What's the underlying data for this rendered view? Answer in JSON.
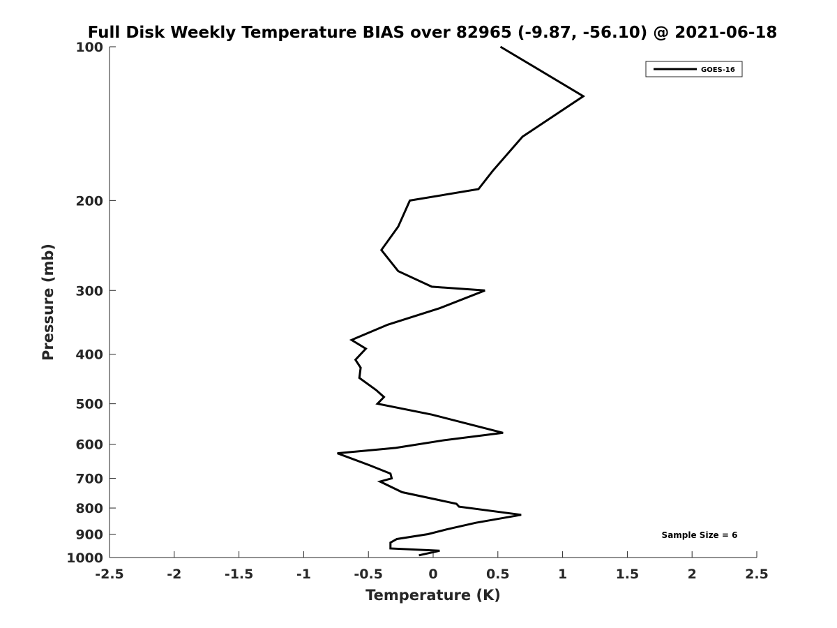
{
  "chart_data": {
    "type": "line",
    "title": "Full Disk Weekly Temperature BIAS over 82965 (-9.87, -56.10) @ 2021-06-18",
    "xlabel": "Temperature (K)",
    "ylabel": "Pressure (mb)",
    "xlim": [
      -2.5,
      2.5
    ],
    "ylim": [
      100,
      1000
    ],
    "y_scale": "log",
    "y_reversed": true,
    "x_ticks": [
      "-2.5",
      "-2",
      "-1.5",
      "-1",
      "-0.5",
      "0",
      "0.5",
      "1",
      "1.5",
      "2",
      "2.5"
    ],
    "y_ticks": [
      "100",
      "200",
      "300",
      "400",
      "500",
      "600",
      "700",
      "800",
      "900",
      "1000"
    ],
    "grid": false,
    "legend": {
      "position": "top-right",
      "entries": [
        "GOES-16"
      ]
    },
    "annotation": "Sample Size = 6",
    "series": [
      {
        "name": "GOES-16",
        "color": "#000000",
        "points": [
          [
            0.52,
            100
          ],
          [
            1.16,
            125
          ],
          [
            0.69,
            150
          ],
          [
            0.46,
            175
          ],
          [
            0.35,
            190
          ],
          [
            -0.18,
            200
          ],
          [
            -0.27,
            225
          ],
          [
            -0.4,
            250
          ],
          [
            -0.27,
            275
          ],
          [
            -0.01,
            295
          ],
          [
            0.4,
            300
          ],
          [
            0.05,
            325
          ],
          [
            -0.35,
            350
          ],
          [
            -0.63,
            375
          ],
          [
            -0.52,
            390
          ],
          [
            -0.6,
            410
          ],
          [
            -0.56,
            425
          ],
          [
            -0.57,
            445
          ],
          [
            -0.44,
            470
          ],
          [
            -0.38,
            485
          ],
          [
            -0.43,
            500
          ],
          [
            -0.01,
            525
          ],
          [
            0.3,
            550
          ],
          [
            0.54,
            570
          ],
          [
            0.07,
            590
          ],
          [
            -0.29,
            610
          ],
          [
            -0.74,
            625
          ],
          [
            -0.49,
            660
          ],
          [
            -0.33,
            685
          ],
          [
            -0.32,
            700
          ],
          [
            -0.41,
            710
          ],
          [
            -0.24,
            745
          ],
          [
            0.18,
            785
          ],
          [
            0.2,
            795
          ],
          [
            0.68,
            825
          ],
          [
            0.33,
            855
          ],
          [
            0.11,
            880
          ],
          [
            -0.04,
            900
          ],
          [
            -0.28,
            920
          ],
          [
            -0.33,
            935
          ],
          [
            -0.33,
            960
          ],
          [
            0.05,
            970
          ],
          [
            -0.11,
            990
          ]
        ]
      }
    ]
  }
}
